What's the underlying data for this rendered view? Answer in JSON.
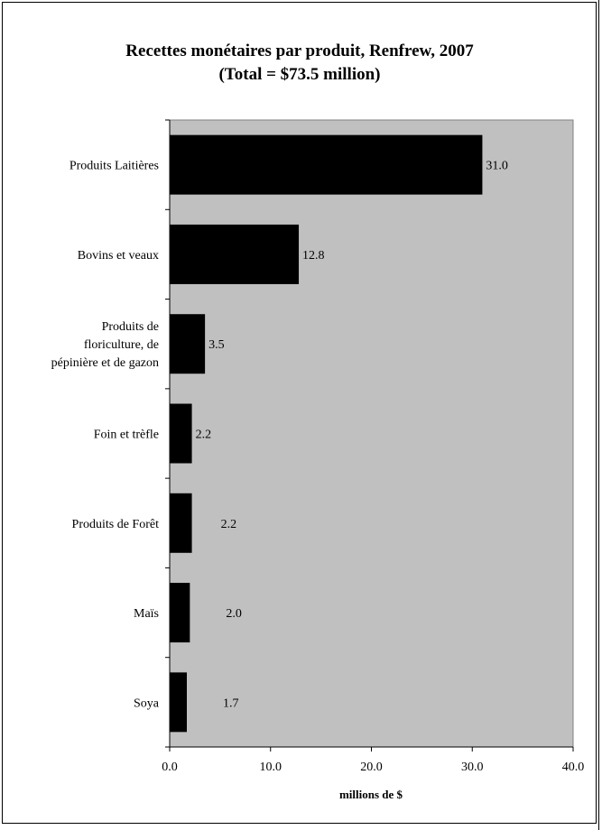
{
  "chart_data": {
    "type": "bar",
    "orientation": "horizontal",
    "title": "Recettes monétaires par produit, Renfrew, 2007",
    "subtitle": "(Total = $73.5 million)",
    "xlabel": "millions de $",
    "ylabel": "",
    "xlim": [
      0,
      40
    ],
    "xticks": [
      "0.0",
      "10.0",
      "20.0",
      "30.0",
      "40.0"
    ],
    "grid": false,
    "legend": "none",
    "colors": {
      "plot_background": "#c0c0c0",
      "bar": "#000000"
    },
    "categories": [
      [
        "Produits Laitières"
      ],
      [
        "Bovins et veaux"
      ],
      [
        "Produits de",
        "floriculture, de",
        "pépinière et de gazon"
      ],
      [
        "Foin et trèfle"
      ],
      [
        "Produits de Forêt"
      ],
      [
        "Maïs"
      ],
      [
        "Soya"
      ]
    ],
    "values": [
      31.0,
      12.8,
      3.5,
      2.2,
      2.2,
      2.0,
      1.7
    ],
    "value_labels": [
      "31.0",
      "12.8",
      "3.5",
      "2.2",
      "2.2",
      "2.0",
      "1.7"
    ]
  }
}
